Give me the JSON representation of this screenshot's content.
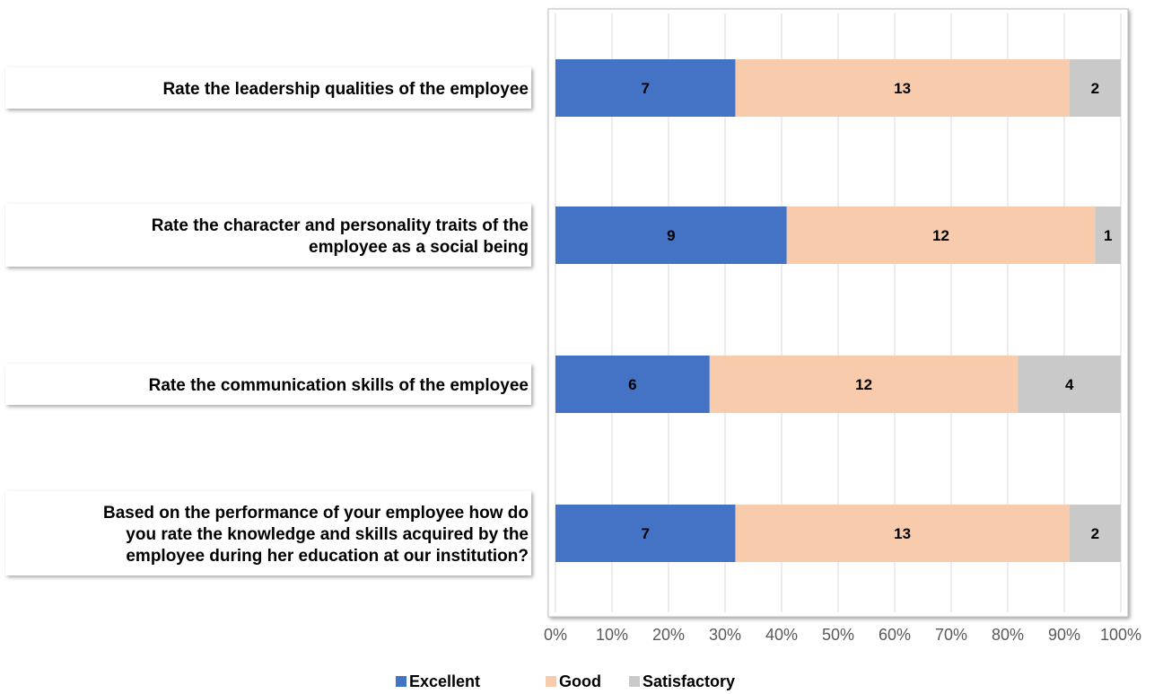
{
  "chart_data": {
    "type": "bar",
    "orientation": "horizontal",
    "stacking": "percent",
    "categories": [
      "Rate the leadership qualities of the employee",
      "Rate the character and personality traits of the employee as a social being",
      "Rate the communication skills of the employee",
      "Based on the performance of your employee how do you rate the knowledge and skills acquired by the employee during her education at our institution?"
    ],
    "category_lines": [
      [
        "Rate the leadership qualities of the employee"
      ],
      [
        "Rate the character and personality traits of the",
        "employee as a social being"
      ],
      [
        "Rate the communication skills of the employee"
      ],
      [
        "Based on the performance of your employee how do",
        "you rate the knowledge and skills acquired by the",
        "employee during her education at our institution?"
      ]
    ],
    "series": [
      {
        "name": "Excellent",
        "color": "#4472C4",
        "values": [
          7,
          9,
          6,
          7
        ]
      },
      {
        "name": "Good",
        "color": "#F8CBAD",
        "values": [
          13,
          12,
          12,
          13
        ]
      },
      {
        "name": "Satisfactory",
        "color": "#C9C9C9",
        "values": [
          2,
          1,
          4,
          2
        ]
      }
    ],
    "xticks": [
      "0%",
      "10%",
      "20%",
      "30%",
      "40%",
      "50%",
      "60%",
      "70%",
      "80%",
      "90%",
      "100%"
    ],
    "xlim": [
      0,
      100
    ],
    "grid": true,
    "legend_position": "bottom",
    "title": "",
    "xlabel": "",
    "ylabel": ""
  }
}
